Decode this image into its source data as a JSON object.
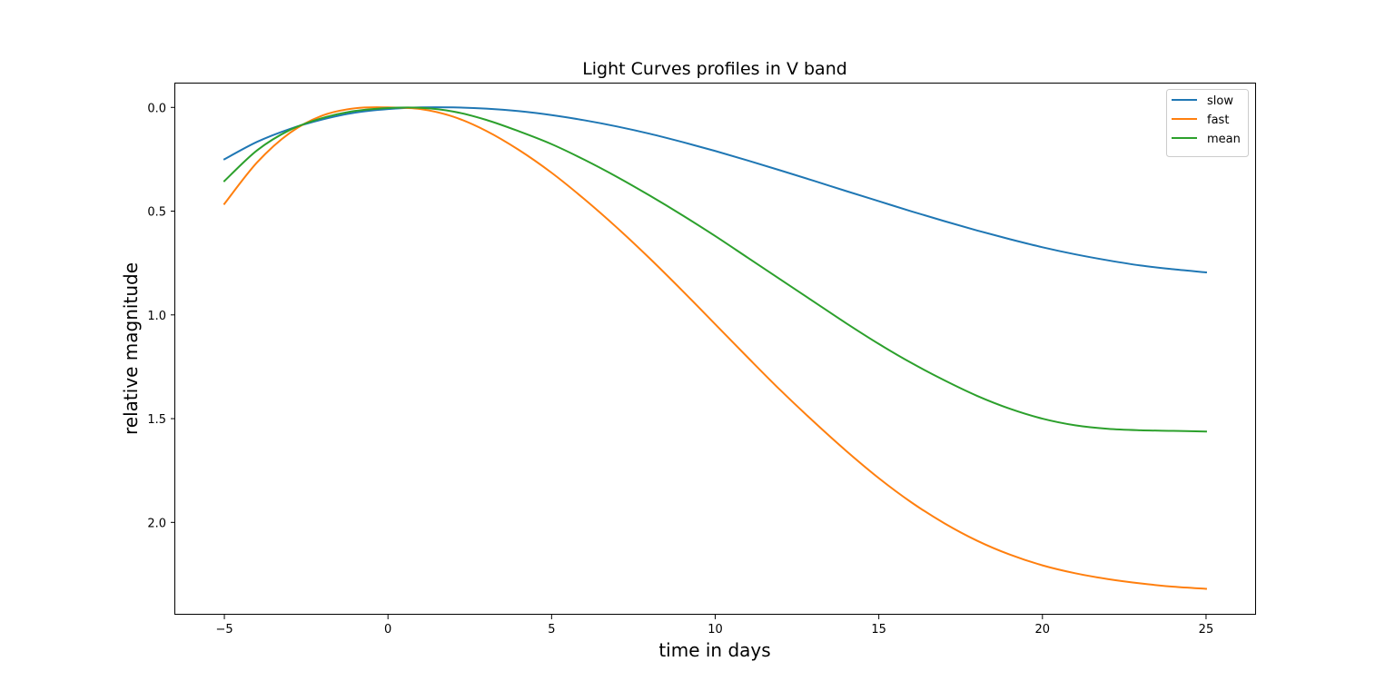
{
  "chart_data": {
    "type": "line",
    "title": "Light Curves profiles in V band",
    "xlabel": "time in days",
    "ylabel": "relative magnitude",
    "xlim": [
      -6.5,
      26.5
    ],
    "ylim": [
      -0.115,
      2.445
    ],
    "y_inverted": true,
    "xticks": [
      -5,
      0,
      5,
      10,
      15,
      20,
      25
    ],
    "xtick_labels": [
      "−5",
      "0",
      "5",
      "10",
      "15",
      "20",
      "25"
    ],
    "yticks": [
      0.0,
      0.5,
      1.0,
      1.5,
      2.0
    ],
    "ytick_labels": [
      "0.0",
      "0.5",
      "1.0",
      "1.5",
      "2.0"
    ],
    "grid": false,
    "legend_position": "upper right",
    "x": [
      -5,
      -4,
      -3,
      -2,
      -1,
      0,
      1,
      2,
      3,
      4,
      5,
      6,
      7,
      8,
      9,
      10,
      11,
      12,
      13,
      14,
      15,
      16,
      17,
      18,
      19,
      20,
      21,
      22,
      23,
      24,
      25
    ],
    "series": [
      {
        "name": "slow",
        "color": "#1f77b4",
        "values": [
          0.25,
          0.166,
          0.104,
          0.058,
          0.025,
          0.008,
          0.0,
          0.0,
          0.006,
          0.018,
          0.037,
          0.062,
          0.092,
          0.127,
          0.167,
          0.21,
          0.256,
          0.304,
          0.353,
          0.403,
          0.452,
          0.501,
          0.548,
          0.593,
          0.635,
          0.674,
          0.708,
          0.737,
          0.762,
          0.78,
          0.795
        ]
      },
      {
        "name": "fast",
        "color": "#ff7f0e",
        "values": [
          0.465,
          0.265,
          0.123,
          0.039,
          0.004,
          0.0,
          0.008,
          0.045,
          0.113,
          0.205,
          0.315,
          0.442,
          0.58,
          0.728,
          0.884,
          1.045,
          1.206,
          1.364,
          1.513,
          1.655,
          1.787,
          1.904,
          2.004,
          2.088,
          2.155,
          2.207,
          2.245,
          2.273,
          2.294,
          2.31,
          2.32
        ]
      },
      {
        "name": "mean",
        "color": "#2ca02c",
        "values": [
          0.355,
          0.207,
          0.109,
          0.051,
          0.017,
          0.003,
          0.002,
          0.02,
          0.06,
          0.115,
          0.177,
          0.252,
          0.335,
          0.425,
          0.52,
          0.62,
          0.725,
          0.83,
          0.935,
          1.04,
          1.14,
          1.232,
          1.315,
          1.39,
          1.452,
          1.5,
          1.532,
          1.549,
          1.556,
          1.559,
          1.562
        ]
      }
    ]
  }
}
